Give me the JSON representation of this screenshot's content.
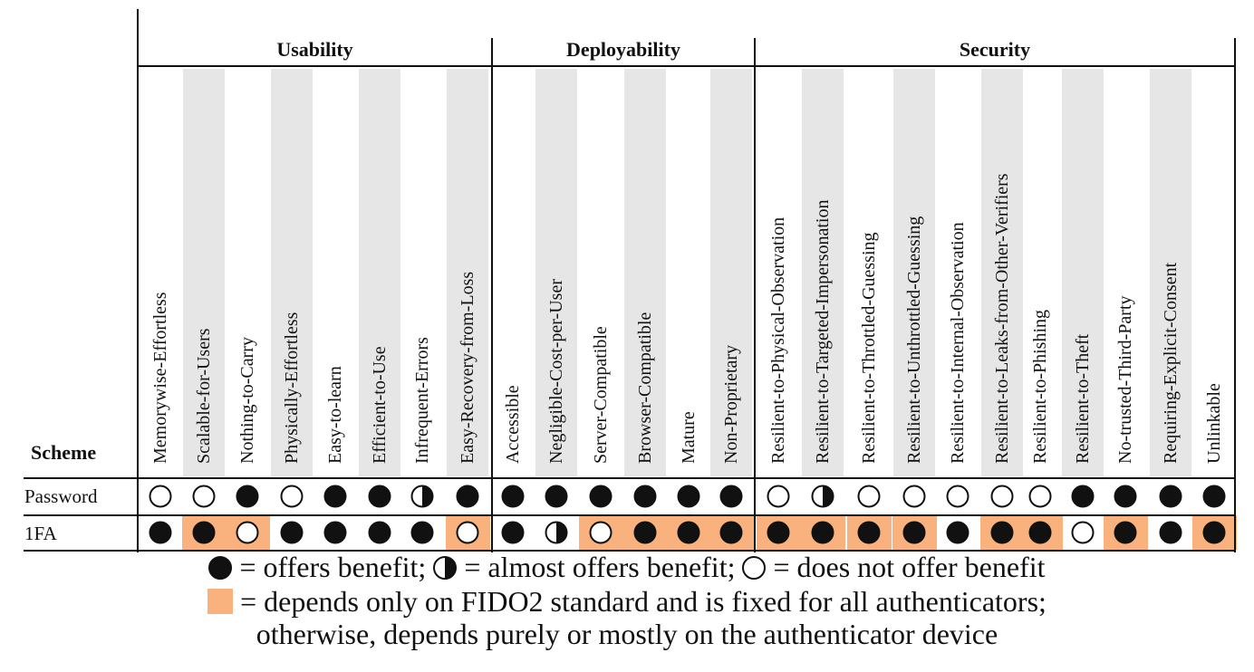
{
  "scheme_label": "Scheme",
  "colors": {
    "fido2_fixed": "#f9b27d",
    "column_shade": "#e6e6e6"
  },
  "groups": [
    {
      "title": "Usability",
      "col_start": 0,
      "col_end": 7
    },
    {
      "title": "Deployability",
      "col_start": 8,
      "col_end": 13
    },
    {
      "title": "Security",
      "col_start": 14,
      "col_end": 24
    }
  ],
  "columns": [
    "Memorywise-Effortless",
    "Scalable-for-Users",
    "Nothing-to-Carry",
    "Physically-Effortless",
    "Easy-to-learn",
    "Efficient-to-Use",
    "Infrequent-Errors",
    "Easy-Recovery-from-Loss",
    "Accessible",
    "Negligible-Cost-per-User",
    "Server-Compatible",
    "Browser-Compatible",
    "Mature",
    "Non-Proprietary",
    "Resilient-to-Physical-Observation",
    "Resilient-to-Targeted-Impersonation",
    "Resilient-to-Throttled-Guessing",
    "Resilient-to-Unthrottled-Guessing",
    "Resilient-to-Internal-Observation",
    "Resilient-to-Leaks-from-Other-Verifiers",
    "Resilient-to-Phishing",
    "Resilient-to-Theft",
    "No-trusted-Third-Party",
    "Requiring-Explicit-Consent",
    "Unlinkable"
  ],
  "rows": [
    {
      "name": "Password",
      "ratings": [
        "empty",
        "empty",
        "full",
        "empty",
        "full",
        "full",
        "half",
        "full",
        "full",
        "full",
        "full",
        "full",
        "full",
        "full",
        "empty",
        "half",
        "empty",
        "empty",
        "empty",
        "empty",
        "empty",
        "full",
        "full",
        "full",
        "full"
      ],
      "fido2_fixed": [
        false,
        false,
        false,
        false,
        false,
        false,
        false,
        false,
        false,
        false,
        false,
        false,
        false,
        false,
        false,
        false,
        false,
        false,
        false,
        false,
        false,
        false,
        false,
        false,
        false
      ]
    },
    {
      "name": "1FA",
      "ratings": [
        "full",
        "full",
        "empty",
        "full",
        "full",
        "full",
        "full",
        "empty",
        "full",
        "half",
        "empty",
        "full",
        "full",
        "full",
        "full",
        "full",
        "full",
        "full",
        "full",
        "full",
        "full",
        "empty",
        "full",
        "full",
        "full"
      ],
      "fido2_fixed": [
        false,
        true,
        true,
        false,
        false,
        false,
        false,
        true,
        false,
        false,
        true,
        true,
        true,
        true,
        true,
        true,
        true,
        true,
        false,
        true,
        true,
        false,
        true,
        false,
        true
      ]
    }
  ],
  "legend": {
    "full_text": "= offers benefit;",
    "half_text": "= almost offers benefit;",
    "empty_text": "= does not offer benefit",
    "swatch_text": "= depends only on FIDO2 standard and is fixed for all authenticators;",
    "otherwise_text": "otherwise, depends purely or mostly on the authenticator device"
  }
}
